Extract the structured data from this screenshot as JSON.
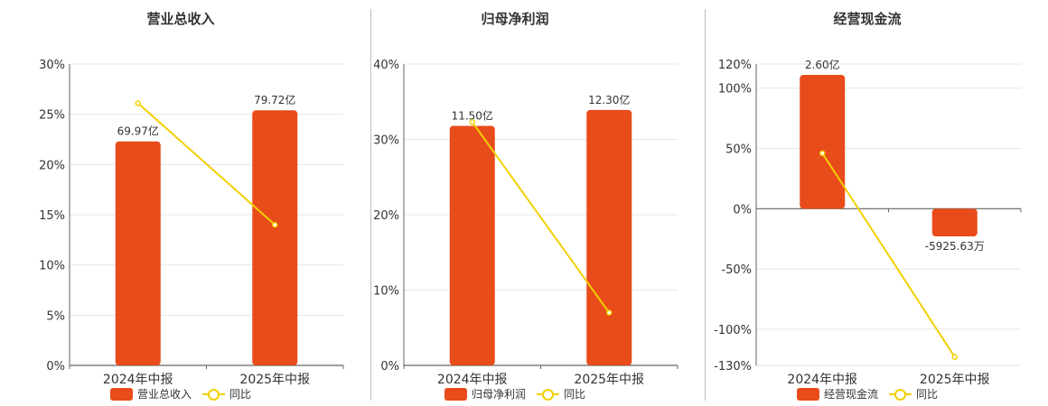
{
  "colors": {
    "bar": "#e84c1a",
    "line": "#f2d000",
    "grid": "#e6e6e6",
    "axis": "#666666"
  },
  "chart_data": [
    {
      "type": "bar",
      "title": "营业总收入",
      "categories": [
        "2024年中报",
        "2025年中报"
      ],
      "series": [
        {
          "name": "营业总收入",
          "kind": "bar",
          "values": [
            22.3,
            25.4
          ],
          "labels": [
            "69.97亿",
            "79.72亿"
          ]
        },
        {
          "name": "同比",
          "kind": "line",
          "values": [
            26.1,
            14.0
          ]
        }
      ],
      "ylim": [
        0,
        30
      ],
      "yticks": [
        0,
        5,
        10,
        15,
        20,
        25,
        30
      ],
      "ytick_labels": [
        "0%",
        "5%",
        "10%",
        "15%",
        "20%",
        "25%",
        "30%"
      ],
      "grid": true,
      "legend": "bottom"
    },
    {
      "type": "bar",
      "title": "归母净利润",
      "categories": [
        "2024年中报",
        "2025年中报"
      ],
      "series": [
        {
          "name": "归母净利润",
          "kind": "bar",
          "values": [
            31.8,
            33.9
          ],
          "labels": [
            "11.50亿",
            "12.30亿"
          ]
        },
        {
          "name": "同比",
          "kind": "line",
          "values": [
            32.3,
            7.0
          ]
        }
      ],
      "ylim": [
        0,
        40
      ],
      "yticks": [
        0,
        10,
        20,
        30,
        40
      ],
      "ytick_labels": [
        "0%",
        "10%",
        "20%",
        "30%",
        "40%"
      ],
      "grid": true,
      "legend": "bottom"
    },
    {
      "type": "bar",
      "title": "经营现金流",
      "categories": [
        "2024年中报",
        "2025年中报"
      ],
      "series": [
        {
          "name": "经营现金流",
          "kind": "bar",
          "values": [
            111,
            -23
          ],
          "labels": [
            "2.60亿",
            "-5925.63万"
          ]
        },
        {
          "name": "同比",
          "kind": "line",
          "values": [
            46,
            -123
          ]
        }
      ],
      "ylim": [
        -130,
        120
      ],
      "yticks": [
        -130,
        -100,
        -50,
        0,
        50,
        100,
        120
      ],
      "ytick_labels": [
        "-130%",
        "-100%",
        "-50%",
        "0%",
        "50%",
        "100%",
        "120%"
      ],
      "grid": true,
      "legend": "bottom"
    }
  ]
}
